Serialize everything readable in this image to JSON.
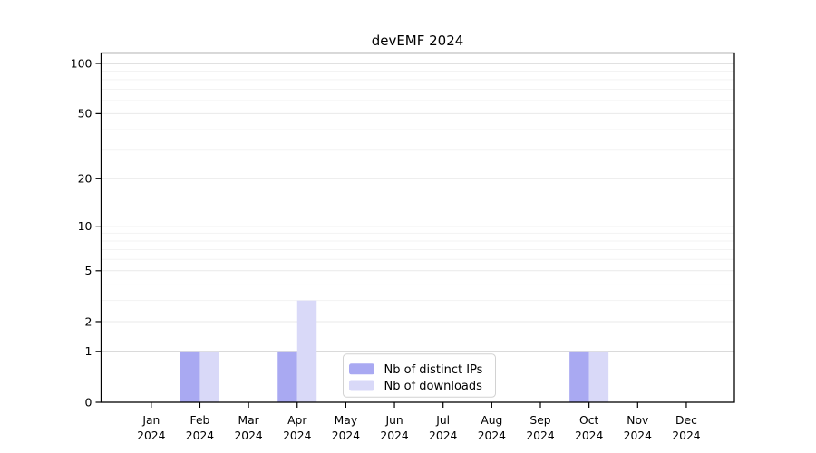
{
  "chart_data": {
    "type": "bar",
    "title": "devEMF 2024",
    "categories": [
      "Jan 2024",
      "Feb 2024",
      "Mar 2024",
      "Apr 2024",
      "May 2024",
      "Jun 2024",
      "Jul 2024",
      "Aug 2024",
      "Sep 2024",
      "Oct 2024",
      "Nov 2024",
      "Dec 2024"
    ],
    "month_labels": [
      "Jan",
      "Feb",
      "Mar",
      "Apr",
      "May",
      "Jun",
      "Jul",
      "Aug",
      "Sep",
      "Oct",
      "Nov",
      "Dec"
    ],
    "year_label": "2024",
    "series": [
      {
        "name": "Nb of distinct IPs",
        "color": "#a9a9f2",
        "values": [
          0,
          1,
          0,
          1,
          0,
          0,
          0,
          0,
          0,
          1,
          0,
          0
        ]
      },
      {
        "name": "Nb of downloads",
        "color": "#d9d9f8",
        "values": [
          0,
          1,
          0,
          3,
          0,
          0,
          0,
          0,
          0,
          1,
          0,
          0
        ]
      }
    ],
    "xlabel": "",
    "ylabel": "",
    "y_axis": {
      "scale": "log1p",
      "tick_values": [
        0,
        1,
        2,
        5,
        10,
        20,
        50,
        100
      ],
      "minor_gridline_values": [
        3,
        4,
        6,
        7,
        8,
        9,
        30,
        40,
        60,
        70,
        80,
        90
      ],
      "ylim": [
        0,
        116
      ]
    },
    "grid": true,
    "legend": {
      "position": "bottom-center",
      "entries": [
        "Nb of distinct IPs",
        "Nb of downloads"
      ]
    },
    "colors": {
      "grid_power10": "#c3c3c3",
      "grid_labeled": "#e9e9e9",
      "grid_minor": "#f3f3f3",
      "axis": "#000000",
      "legend_border": "#d2d2d2",
      "legend_bg": "#ffffff",
      "text": "#000000"
    }
  }
}
